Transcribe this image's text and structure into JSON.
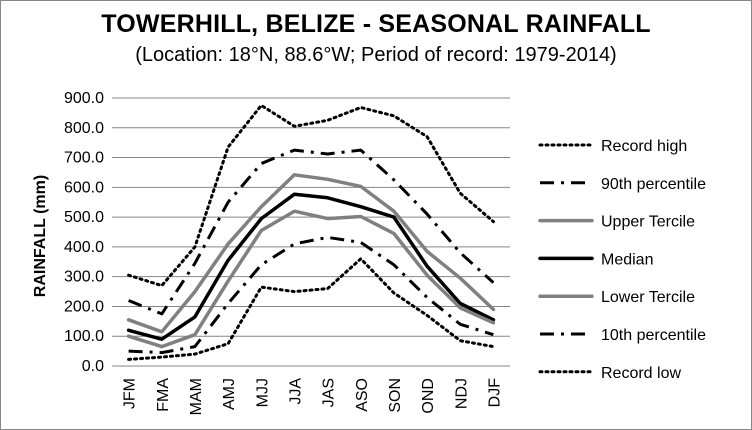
{
  "chart_data": {
    "type": "line",
    "title": "TOWERHILL, BELIZE - SEASONAL RAINFALL",
    "subtitle": "(Location: 18°N, 88.6°W; Period of record: 1979-2014)",
    "ylabel": "RAINFALL (mm)",
    "xlabel": "",
    "ylim": [
      0,
      900
    ],
    "yticks": [
      "0.0",
      "100.0",
      "200.0",
      "300.0",
      "400.0",
      "500.0",
      "600.0",
      "700.0",
      "800.0",
      "900.0"
    ],
    "categories": [
      "JFM",
      "FMA",
      "MAM",
      "AMJ",
      "MJJ",
      "JJA",
      "JAS",
      "ASO",
      "SON",
      "OND",
      "NDJ",
      "DJF"
    ],
    "grid": "horizontal",
    "legend_position": "right",
    "series": [
      {
        "name": "Record high",
        "color": "#000000",
        "style": "dotted",
        "values": [
          305,
          270,
          400,
          735,
          875,
          805,
          825,
          868,
          840,
          770,
          580,
          485
        ]
      },
      {
        "name": "90th percentile",
        "color": "#000000",
        "style": "dash-dot",
        "values": [
          220,
          175,
          345,
          550,
          680,
          725,
          712,
          725,
          625,
          510,
          380,
          280
        ]
      },
      {
        "name": "Upper Tercile",
        "color": "#808080",
        "style": "solid",
        "values": [
          155,
          115,
          250,
          410,
          535,
          642,
          627,
          603,
          520,
          385,
          295,
          190
        ]
      },
      {
        "name": "Median",
        "color": "#000000",
        "style": "solid",
        "values": [
          120,
          90,
          165,
          355,
          495,
          577,
          565,
          535,
          500,
          335,
          210,
          155
        ]
      },
      {
        "name": "Lower Tercile",
        "color": "#808080",
        "style": "solid",
        "values": [
          100,
          65,
          105,
          285,
          455,
          520,
          495,
          502,
          445,
          305,
          195,
          145
        ]
      },
      {
        "name": "10th percentile",
        "color": "#000000",
        "style": "dash-dot",
        "values": [
          50,
          45,
          65,
          210,
          340,
          410,
          432,
          415,
          340,
          230,
          140,
          105
        ]
      },
      {
        "name": "Record low",
        "color": "#000000",
        "style": "dotted",
        "values": [
          22,
          30,
          40,
          75,
          265,
          250,
          260,
          360,
          245,
          170,
          85,
          65
        ]
      }
    ]
  }
}
